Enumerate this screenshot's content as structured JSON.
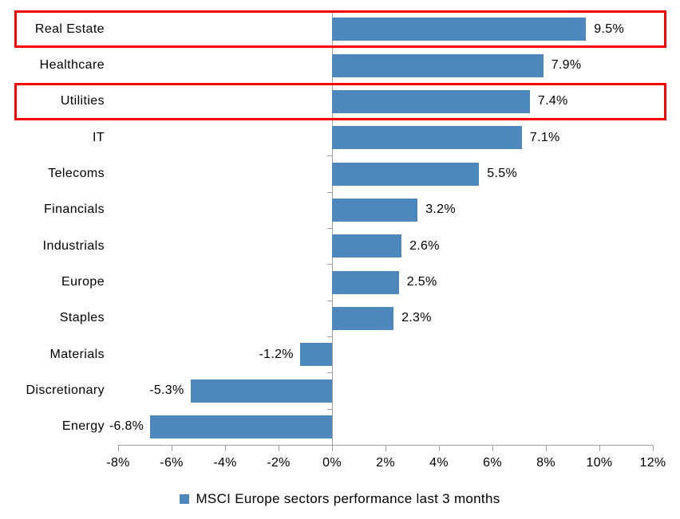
{
  "chart_data": {
    "type": "bar",
    "orientation": "horizontal",
    "title": "",
    "xlabel": "",
    "ylabel": "",
    "categories": [
      "Real Estate",
      "Healthcare",
      "Utilities",
      "IT",
      "Telecoms",
      "Financials",
      "Industrials",
      "Europe",
      "Staples",
      "Materials",
      "Discretionary",
      "Energy"
    ],
    "values": [
      9.5,
      7.9,
      7.4,
      7.1,
      5.5,
      3.2,
      2.6,
      2.5,
      2.3,
      -1.2,
      -5.3,
      -6.8
    ],
    "data_labels": [
      "9.5%",
      "7.9%",
      "7.4%",
      "7.1%",
      "5.5%",
      "3.2%",
      "2.6%",
      "2.5%",
      "2.3%",
      "-1.2%",
      "-5.3%",
      "-6.8%"
    ],
    "x_ticks": [
      -8,
      -6,
      -4,
      -2,
      0,
      2,
      4,
      6,
      8,
      10,
      12
    ],
    "x_tick_labels": [
      "-8%",
      "-6%",
      "-4%",
      "-2%",
      "0%",
      "2%",
      "4%",
      "6%",
      "8%",
      "10%",
      "12%"
    ],
    "xlim": [
      -8,
      12
    ],
    "grid": false,
    "legend": {
      "position": "bottom",
      "label": "MSCI Europe sectors performance last 3 months"
    },
    "highlighted_categories": [
      "Real Estate",
      "Utilities"
    ],
    "colors": {
      "bar": "#4E86BE",
      "highlight_box": "#FE0000",
      "axis": "#A0A0A0",
      "text": "#000000",
      "background": "#FFFFFF"
    }
  }
}
